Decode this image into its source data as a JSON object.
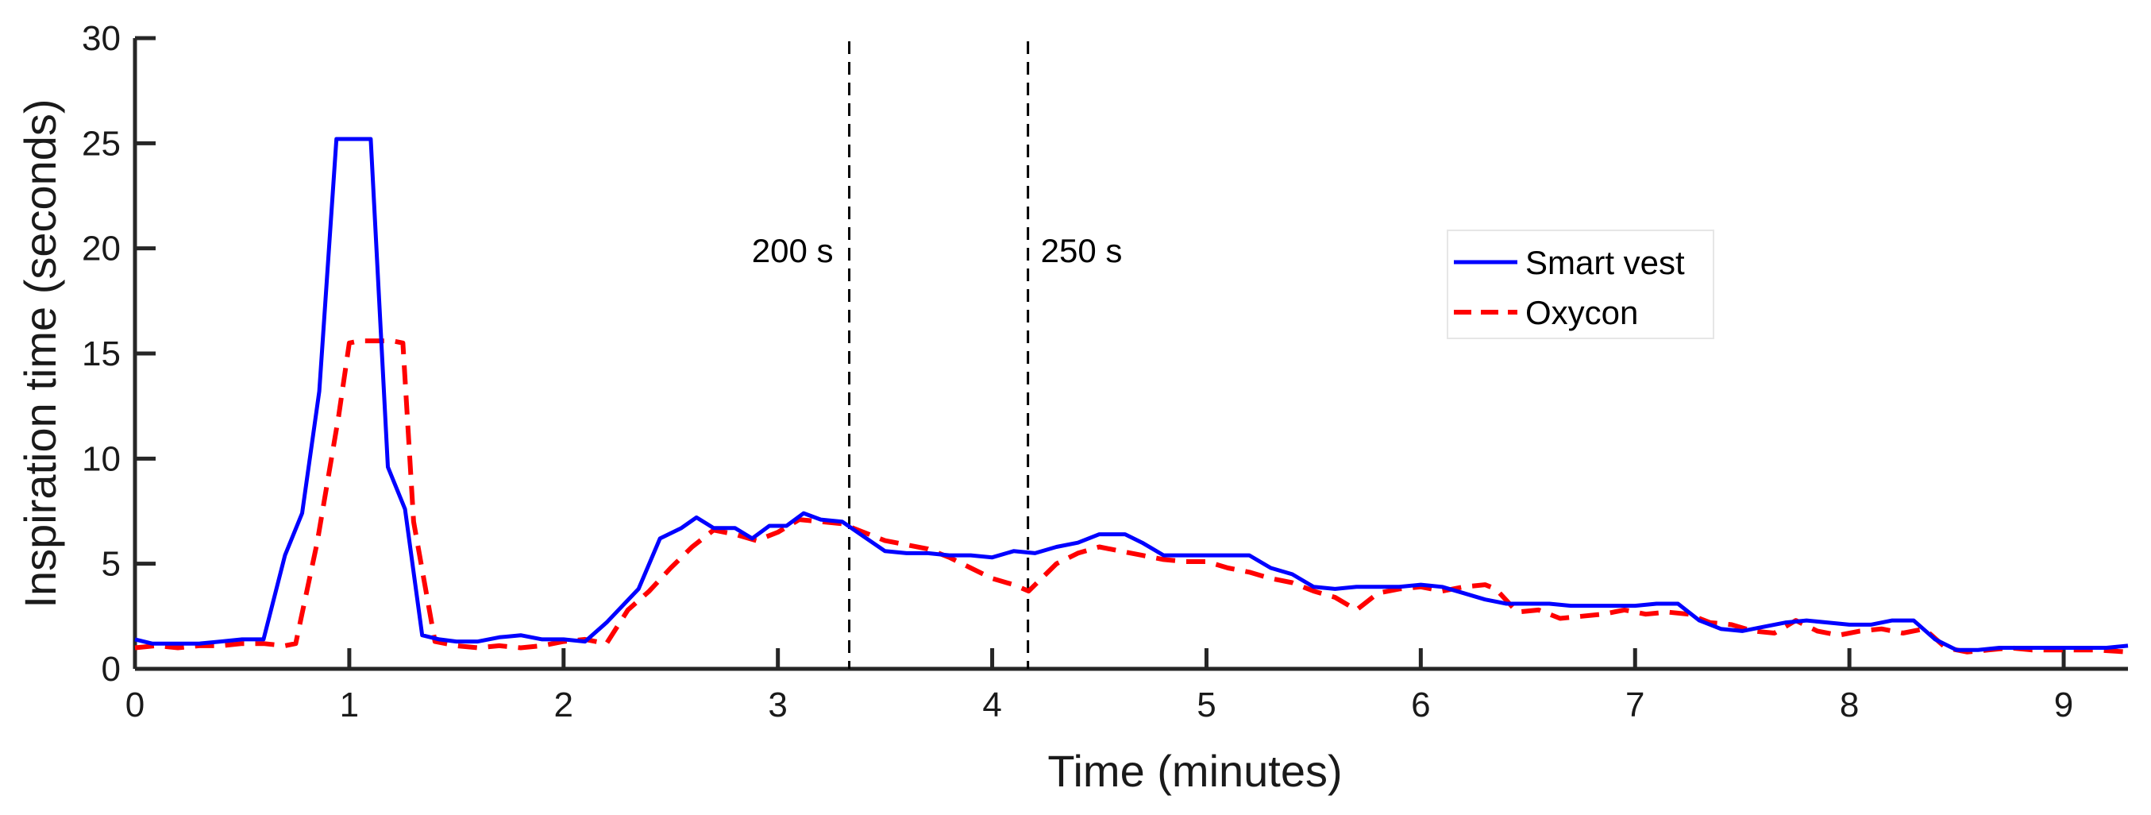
{
  "chart_data": {
    "type": "line",
    "title": "",
    "xlabel": "Time (minutes)",
    "ylabel": "Inspiration time (seconds)",
    "xlim": [
      0,
      9.3
    ],
    "ylim": [
      0,
      30
    ],
    "xticks": [
      0,
      1,
      2,
      3,
      4,
      5,
      6,
      7,
      8,
      9
    ],
    "yticks": [
      0,
      5,
      10,
      15,
      20,
      25,
      30
    ],
    "grid": false,
    "legend": {
      "position": "upper-right-center",
      "entries": [
        "Smart vest",
        "Oxycon"
      ]
    },
    "annotations": [
      {
        "label": "200 s",
        "x": 3.333,
        "style": "dashed-vertical",
        "color": "#000000"
      },
      {
        "label": "250 s",
        "x": 4.167,
        "style": "dashed-vertical",
        "color": "#000000"
      }
    ],
    "series": [
      {
        "name": "Smart vest",
        "color": "#0000ff",
        "style": "solid",
        "x": [
          0.0,
          0.08,
          0.2,
          0.3,
          0.4,
          0.5,
          0.6,
          0.7,
          0.78,
          0.86,
          0.94,
          1.0,
          1.1,
          1.18,
          1.26,
          1.34,
          1.42,
          1.5,
          1.6,
          1.7,
          1.8,
          1.9,
          2.0,
          2.1,
          2.2,
          2.35,
          2.45,
          2.55,
          2.62,
          2.7,
          2.8,
          2.88,
          2.96,
          3.04,
          3.12,
          3.2,
          3.3,
          3.4,
          3.5,
          3.6,
          3.7,
          3.8,
          3.9,
          4.0,
          4.1,
          4.2,
          4.3,
          4.4,
          4.5,
          4.62,
          4.7,
          4.8,
          4.9,
          5.0,
          5.1,
          5.2,
          5.3,
          5.4,
          5.5,
          5.6,
          5.7,
          5.8,
          5.9,
          6.0,
          6.1,
          6.2,
          6.3,
          6.4,
          6.5,
          6.6,
          6.7,
          6.8,
          6.9,
          7.0,
          7.1,
          7.2,
          7.3,
          7.4,
          7.5,
          7.6,
          7.7,
          7.8,
          7.9,
          8.0,
          8.1,
          8.2,
          8.3,
          8.4,
          8.5,
          8.6,
          8.7,
          8.8,
          8.9,
          9.0,
          9.1,
          9.2,
          9.3
        ],
        "values": [
          1.4,
          1.2,
          1.2,
          1.2,
          1.3,
          1.4,
          1.4,
          5.4,
          7.4,
          13.2,
          25.2,
          25.2,
          25.2,
          9.6,
          7.6,
          1.6,
          1.4,
          1.3,
          1.3,
          1.5,
          1.6,
          1.4,
          1.4,
          1.3,
          2.2,
          3.8,
          6.2,
          6.7,
          7.2,
          6.7,
          6.7,
          6.2,
          6.8,
          6.8,
          7.4,
          7.1,
          7.0,
          6.3,
          5.6,
          5.5,
          5.5,
          5.4,
          5.4,
          5.3,
          5.6,
          5.5,
          5.8,
          6.0,
          6.4,
          6.4,
          6.0,
          5.4,
          5.4,
          5.4,
          5.4,
          5.4,
          4.8,
          4.5,
          3.9,
          3.8,
          3.9,
          3.9,
          3.9,
          4.0,
          3.9,
          3.6,
          3.3,
          3.1,
          3.1,
          3.1,
          3.0,
          3.0,
          3.0,
          3.0,
          3.1,
          3.1,
          2.3,
          1.9,
          1.8,
          2.0,
          2.2,
          2.3,
          2.2,
          2.1,
          2.1,
          2.3,
          2.3,
          1.4,
          0.9,
          0.9,
          1.0,
          1.0,
          1.0,
          1.0,
          1.0,
          1.0,
          1.1
        ]
      },
      {
        "name": "Oxycon",
        "color": "#ff0000",
        "style": "dashed",
        "x": [
          0.0,
          0.1,
          0.2,
          0.3,
          0.4,
          0.5,
          0.6,
          0.7,
          0.75,
          0.85,
          0.95,
          1.0,
          1.05,
          1.1,
          1.2,
          1.25,
          1.3,
          1.4,
          1.5,
          1.6,
          1.7,
          1.8,
          1.9,
          2.0,
          2.1,
          2.2,
          2.3,
          2.4,
          2.5,
          2.6,
          2.7,
          2.8,
          2.9,
          3.0,
          3.1,
          3.2,
          3.3,
          3.4,
          3.5,
          3.6,
          3.7,
          3.8,
          3.9,
          4.0,
          4.1,
          4.17,
          4.3,
          4.4,
          4.5,
          4.6,
          4.7,
          4.8,
          4.9,
          5.0,
          5.1,
          5.2,
          5.3,
          5.4,
          5.5,
          5.6,
          5.7,
          5.8,
          5.9,
          6.0,
          6.1,
          6.2,
          6.3,
          6.35,
          6.45,
          6.55,
          6.65,
          6.75,
          6.85,
          6.95,
          7.05,
          7.15,
          7.25,
          7.35,
          7.45,
          7.55,
          7.65,
          7.75,
          7.85,
          7.95,
          8.05,
          8.15,
          8.25,
          8.35,
          8.45,
          8.55,
          8.65,
          8.75,
          8.85,
          8.95,
          9.05,
          9.15,
          9.3
        ],
        "values": [
          1.0,
          1.1,
          1.0,
          1.1,
          1.1,
          1.2,
          1.2,
          1.1,
          1.2,
          6.0,
          12.0,
          15.5,
          15.6,
          15.6,
          15.6,
          15.5,
          7.0,
          1.3,
          1.1,
          1.0,
          1.1,
          1.0,
          1.1,
          1.3,
          1.4,
          1.2,
          2.8,
          3.7,
          4.8,
          5.8,
          6.6,
          6.4,
          6.1,
          6.5,
          7.1,
          7.0,
          6.9,
          6.5,
          6.1,
          5.9,
          5.7,
          5.3,
          4.8,
          4.3,
          4.0,
          3.7,
          5.0,
          5.5,
          5.8,
          5.6,
          5.4,
          5.2,
          5.1,
          5.1,
          4.8,
          4.6,
          4.3,
          4.1,
          3.7,
          3.4,
          2.8,
          3.6,
          3.8,
          3.9,
          3.7,
          3.9,
          4.0,
          3.8,
          2.7,
          2.8,
          2.4,
          2.5,
          2.6,
          2.8,
          2.6,
          2.7,
          2.6,
          2.2,
          2.1,
          1.8,
          1.7,
          2.3,
          1.8,
          1.6,
          1.8,
          1.9,
          1.7,
          1.9,
          1.0,
          0.8,
          0.9,
          1.0,
          0.9,
          0.9,
          0.9,
          0.9,
          0.8
        ]
      }
    ]
  }
}
